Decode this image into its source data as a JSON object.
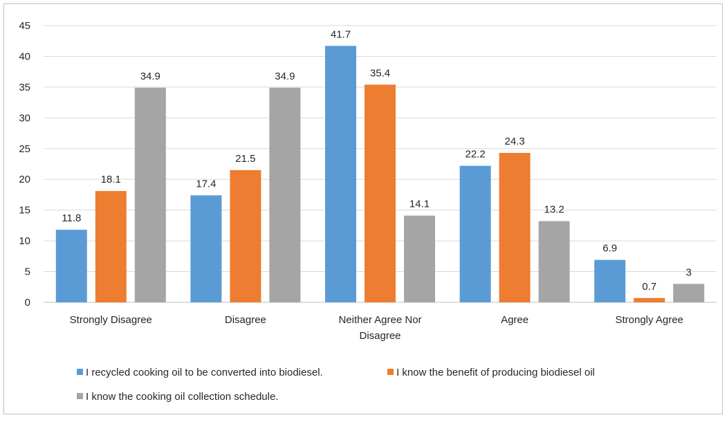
{
  "chart_data": {
    "type": "bar",
    "categories": [
      "Strongly Disagree",
      "Disagree",
      "Neither Agree Nor Disagree",
      "Agree",
      "Strongly Agree"
    ],
    "series": [
      {
        "name": "I recycled cooking oil to be converted into biodiesel.",
        "color": "#5b9bd5",
        "values": [
          11.8,
          17.4,
          41.7,
          22.2,
          6.9
        ]
      },
      {
        "name": "I know the benefit of producing biodiesel oil",
        "color": "#ed7d31",
        "values": [
          18.1,
          21.5,
          35.4,
          24.3,
          0.7
        ]
      },
      {
        "name": "I know the cooking oil collection schedule.",
        "color": "#a5a5a5",
        "values": [
          34.9,
          34.9,
          14.1,
          13.2,
          3
        ]
      }
    ],
    "ylim": [
      0,
      45
    ],
    "yticks": [
      0,
      5,
      10,
      15,
      20,
      25,
      30,
      35,
      40,
      45
    ],
    "grid": true,
    "legend_position": "bottom",
    "title": "",
    "xlabel": "",
    "ylabel": ""
  }
}
